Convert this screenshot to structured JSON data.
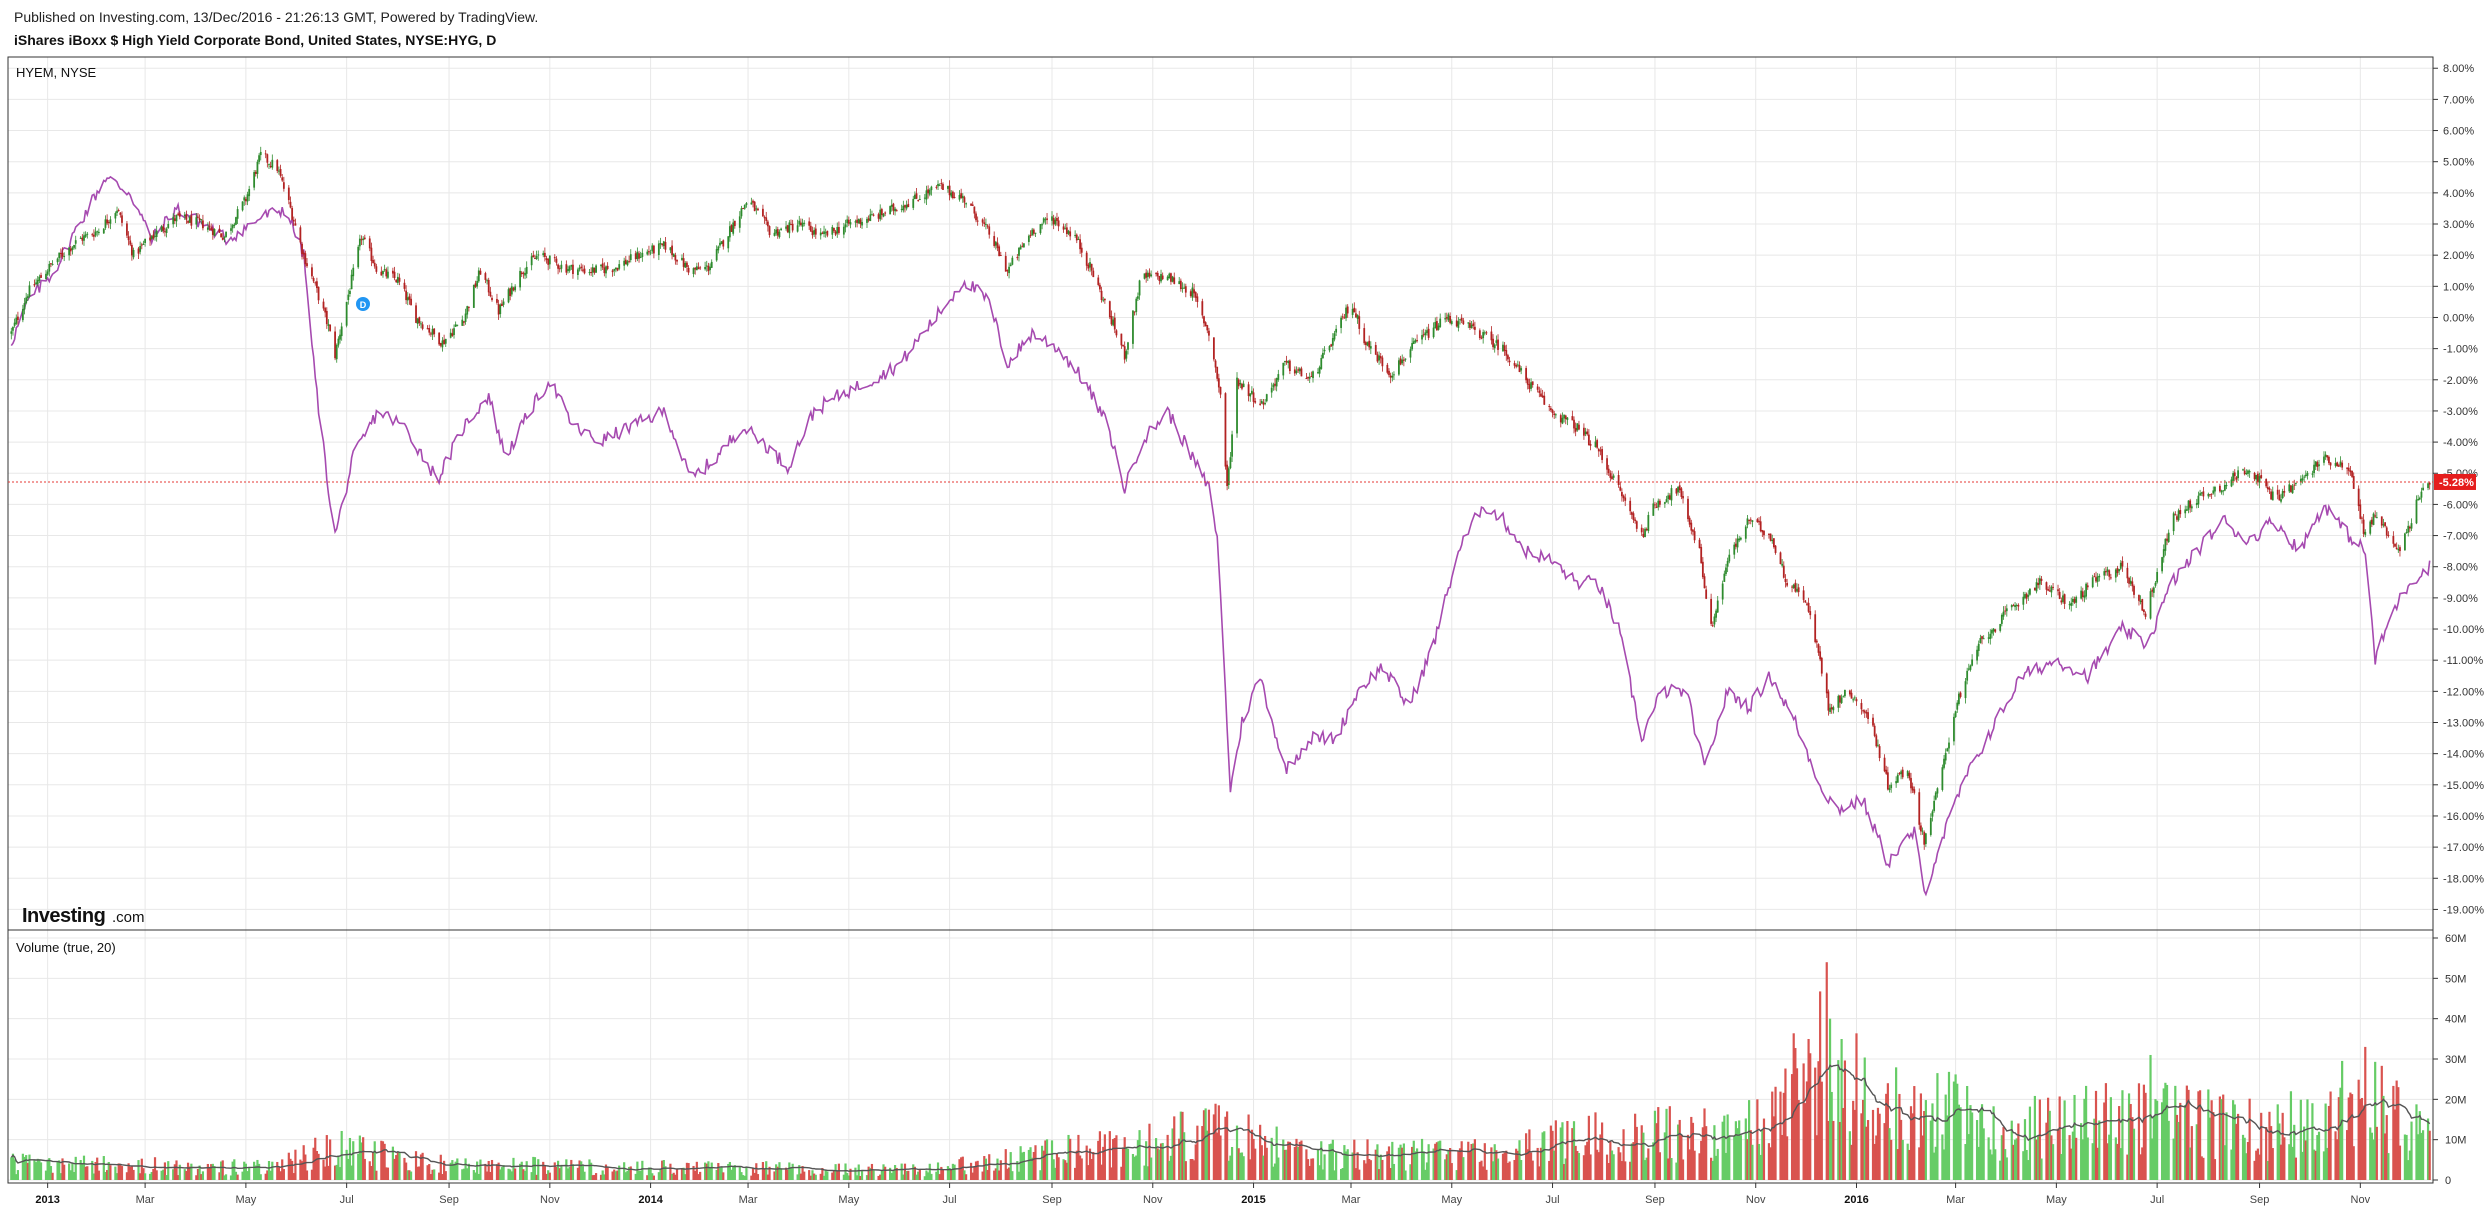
{
  "header": {
    "published": "Published on Investing.com, 13/Dec/2016 - 21:26:13 GMT, Powered by TradingView.",
    "title": "iShares iBoxx $ High Yield Corporate Bond, United States, NYSE:HYG, D"
  },
  "panes": {
    "price_label": "HYEM, NYSE",
    "volume_label": "Volume (true, 20)",
    "last_value_label": "-5.28%",
    "logo_main": "Investing",
    "logo_suffix": ".com",
    "marker_letter": "D"
  },
  "colors": {
    "up_candle": "#2e8b2e",
    "down_candle": "#b22222",
    "compare_line": "#a64ab0",
    "volume_up": "#66cc66",
    "volume_down": "#d9534f",
    "volume_ma": "#555555",
    "last_line": "#e53935",
    "grid": "#e8e8e8"
  },
  "chart_data": [
    {
      "type": "candlestick",
      "name": "HYG",
      "compare_series_name": "HYEM, NYSE",
      "y_unit": "%",
      "ylim": [
        -19.5,
        8.2
      ],
      "y_ticks": [
        "8.00%",
        "7.00%",
        "6.00%",
        "5.00%",
        "4.00%",
        "3.00%",
        "2.00%",
        "1.00%",
        "0.00%",
        "-1.00%",
        "-2.00%",
        "-3.00%",
        "-4.00%",
        "-5.00%",
        "-6.00%",
        "-7.00%",
        "-8.00%",
        "-9.00%",
        "-10.00%",
        "-11.00%",
        "-12.00%",
        "-13.00%",
        "-14.00%",
        "-15.00%",
        "-16.00%",
        "-17.00%",
        "-18.00%",
        "-19.00%"
      ],
      "x_ticks": [
        {
          "label": "2013",
          "date": "2013-01-01",
          "bold": true
        },
        {
          "label": "Mar",
          "date": "2013-03-01"
        },
        {
          "label": "May",
          "date": "2013-05-01"
        },
        {
          "label": "Jul",
          "date": "2013-07-01"
        },
        {
          "label": "Sep",
          "date": "2013-09-01"
        },
        {
          "label": "Nov",
          "date": "2013-11-01"
        },
        {
          "label": "2014",
          "date": "2014-01-01",
          "bold": true
        },
        {
          "label": "Mar",
          "date": "2014-03-01"
        },
        {
          "label": "May",
          "date": "2014-05-01"
        },
        {
          "label": "Jul",
          "date": "2014-07-01"
        },
        {
          "label": "Sep",
          "date": "2014-09-01"
        },
        {
          "label": "Nov",
          "date": "2014-11-01"
        },
        {
          "label": "2015",
          "date": "2015-01-01",
          "bold": true
        },
        {
          "label": "Mar",
          "date": "2015-03-01"
        },
        {
          "label": "May",
          "date": "2015-05-01"
        },
        {
          "label": "Jul",
          "date": "2015-07-01"
        },
        {
          "label": "Sep",
          "date": "2015-09-01"
        },
        {
          "label": "Nov",
          "date": "2015-11-01"
        },
        {
          "label": "2016",
          "date": "2016-01-01",
          "bold": true
        },
        {
          "label": "Mar",
          "date": "2016-03-01"
        },
        {
          "label": "May",
          "date": "2016-05-01"
        },
        {
          "label": "Jul",
          "date": "2016-07-01"
        },
        {
          "label": "Sep",
          "date": "2016-09-01"
        },
        {
          "label": "Nov",
          "date": "2016-11-01"
        }
      ],
      "x_range": [
        "2012-12-08",
        "2016-12-15"
      ],
      "last_value": -5.28,
      "hyg_path": [
        [
          "2012-12-10",
          -0.5
        ],
        [
          "2012-12-20",
          0.8
        ],
        [
          "2013-01-05",
          1.8
        ],
        [
          "2013-01-20",
          2.5
        ],
        [
          "2013-02-01",
          2.8
        ],
        [
          "2013-02-12",
          3.5
        ],
        [
          "2013-02-22",
          2.0
        ],
        [
          "2013-03-05",
          2.6
        ],
        [
          "2013-03-20",
          3.2
        ],
        [
          "2013-04-05",
          3.0
        ],
        [
          "2013-04-18",
          2.6
        ],
        [
          "2013-05-01",
          3.8
        ],
        [
          "2013-05-10",
          5.2
        ],
        [
          "2013-05-20",
          4.8
        ],
        [
          "2013-05-28",
          3.5
        ],
        [
          "2013-06-05",
          2.0
        ],
        [
          "2013-06-12",
          1.0
        ],
        [
          "2013-06-20",
          -0.3
        ],
        [
          "2013-06-24",
          -1.2
        ],
        [
          "2013-07-01",
          0.5
        ],
        [
          "2013-07-10",
          2.6
        ],
        [
          "2013-07-20",
          1.5
        ],
        [
          "2013-08-01",
          1.2
        ],
        [
          "2013-08-12",
          0.0
        ],
        [
          "2013-08-28",
          -0.8
        ],
        [
          "2013-09-10",
          0.0
        ],
        [
          "2013-09-20",
          1.5
        ],
        [
          "2013-10-01",
          0.2
        ],
        [
          "2013-10-15",
          1.5
        ],
        [
          "2013-10-25",
          2.0
        ],
        [
          "2013-11-10",
          1.6
        ],
        [
          "2013-11-25",
          1.5
        ],
        [
          "2013-12-10",
          1.6
        ],
        [
          "2013-12-25",
          2.0
        ],
        [
          "2014-01-10",
          2.3
        ],
        [
          "2014-01-25",
          1.5
        ],
        [
          "2014-02-05",
          1.6
        ],
        [
          "2014-02-20",
          3.0
        ],
        [
          "2014-03-01",
          3.8
        ],
        [
          "2014-03-15",
          2.7
        ],
        [
          "2014-04-01",
          3.0
        ],
        [
          "2014-04-15",
          2.6
        ],
        [
          "2014-05-01",
          3.0
        ],
        [
          "2014-05-20",
          3.3
        ],
        [
          "2014-06-10",
          3.8
        ],
        [
          "2014-06-25",
          4.2
        ],
        [
          "2014-07-10",
          3.8
        ],
        [
          "2014-07-25",
          2.7
        ],
        [
          "2014-08-05",
          1.5
        ],
        [
          "2014-08-20",
          2.8
        ],
        [
          "2014-09-01",
          3.2
        ],
        [
          "2014-09-15",
          2.6
        ],
        [
          "2014-09-25",
          1.5
        ],
        [
          "2014-10-10",
          -0.5
        ],
        [
          "2014-10-15",
          -1.2
        ],
        [
          "2014-10-25",
          1.3
        ],
        [
          "2014-11-10",
          1.3
        ],
        [
          "2014-11-25",
          0.8
        ],
        [
          "2014-12-05",
          -0.5
        ],
        [
          "2014-12-12",
          -2.5
        ],
        [
          "2014-12-16",
          -5.5
        ],
        [
          "2014-12-22",
          -2.0
        ],
        [
          "2015-01-06",
          -2.8
        ],
        [
          "2015-01-20",
          -1.5
        ],
        [
          "2015-02-05",
          -2.0
        ],
        [
          "2015-02-20",
          -0.5
        ],
        [
          "2015-03-01",
          0.5
        ],
        [
          "2015-03-10",
          -0.8
        ],
        [
          "2015-03-25",
          -1.8
        ],
        [
          "2015-04-10",
          -0.8
        ],
        [
          "2015-04-28",
          0.0
        ],
        [
          "2015-05-15",
          -0.4
        ],
        [
          "2015-06-01",
          -1.0
        ],
        [
          "2015-06-15",
          -2.0
        ],
        [
          "2015-06-30",
          -3.0
        ],
        [
          "2015-07-15",
          -3.5
        ],
        [
          "2015-07-28",
          -4.2
        ],
        [
          "2015-08-10",
          -5.5
        ],
        [
          "2015-08-24",
          -7.0
        ],
        [
          "2015-09-01",
          -6.0
        ],
        [
          "2015-09-15",
          -5.5
        ],
        [
          "2015-09-28",
          -7.5
        ],
        [
          "2015-10-05",
          -10.0
        ],
        [
          "2015-10-15",
          -7.8
        ],
        [
          "2015-10-28",
          -6.5
        ],
        [
          "2015-11-10",
          -7.0
        ],
        [
          "2015-11-20",
          -8.5
        ],
        [
          "2015-12-01",
          -9.0
        ],
        [
          "2015-12-10",
          -11.0
        ],
        [
          "2015-12-15",
          -12.5
        ],
        [
          "2015-12-28",
          -12.0
        ],
        [
          "2016-01-10",
          -13.0
        ],
        [
          "2016-01-20",
          -15.0
        ],
        [
          "2016-02-01",
          -14.5
        ],
        [
          "2016-02-11",
          -16.8
        ],
        [
          "2016-02-20",
          -15.0
        ],
        [
          "2016-03-01",
          -12.5
        ],
        [
          "2016-03-15",
          -10.5
        ],
        [
          "2016-04-01",
          -9.5
        ],
        [
          "2016-04-20",
          -8.5
        ],
        [
          "2016-05-10",
          -9.2
        ],
        [
          "2016-05-25",
          -8.4
        ],
        [
          "2016-06-10",
          -8.0
        ],
        [
          "2016-06-24",
          -9.5
        ],
        [
          "2016-07-10",
          -6.5
        ],
        [
          "2016-07-25",
          -5.8
        ],
        [
          "2016-08-10",
          -5.4
        ],
        [
          "2016-08-25",
          -4.8
        ],
        [
          "2016-09-10",
          -5.8
        ],
        [
          "2016-09-25",
          -5.3
        ],
        [
          "2016-10-10",
          -4.5
        ],
        [
          "2016-10-25",
          -4.8
        ],
        [
          "2016-11-04",
          -7.0
        ],
        [
          "2016-11-10",
          -6.3
        ],
        [
          "2016-11-25",
          -7.5
        ],
        [
          "2016-12-05",
          -6.0
        ],
        [
          "2016-12-13",
          -5.28
        ]
      ],
      "hyem_path": [
        [
          "2012-12-10",
          -0.8
        ],
        [
          "2012-12-20",
          0.5
        ],
        [
          "2013-01-05",
          1.5
        ],
        [
          "2013-01-20",
          3.0
        ],
        [
          "2013-02-05",
          4.5
        ],
        [
          "2013-02-20",
          4.0
        ],
        [
          "2013-03-05",
          2.5
        ],
        [
          "2013-03-20",
          3.5
        ],
        [
          "2013-04-05",
          3.0
        ],
        [
          "2013-04-20",
          2.5
        ],
        [
          "2013-05-10",
          3.2
        ],
        [
          "2013-05-25",
          3.5
        ],
        [
          "2013-06-05",
          2.0
        ],
        [
          "2013-06-12",
          -2.0
        ],
        [
          "2013-06-20",
          -5.5
        ],
        [
          "2013-06-24",
          -7.0
        ],
        [
          "2013-07-05",
          -4.5
        ],
        [
          "2013-07-20",
          -3.0
        ],
        [
          "2013-08-05",
          -3.5
        ],
        [
          "2013-08-25",
          -5.2
        ],
        [
          "2013-09-10",
          -3.5
        ],
        [
          "2013-09-25",
          -2.5
        ],
        [
          "2013-10-05",
          -4.5
        ],
        [
          "2013-10-20",
          -3.0
        ],
        [
          "2013-11-01",
          -2.0
        ],
        [
          "2013-11-15",
          -3.5
        ],
        [
          "2013-12-01",
          -4.0
        ],
        [
          "2013-12-20",
          -3.5
        ],
        [
          "2014-01-10",
          -3.0
        ],
        [
          "2014-01-25",
          -5.2
        ],
        [
          "2014-02-10",
          -4.5
        ],
        [
          "2014-02-25",
          -3.5
        ],
        [
          "2014-03-10",
          -4.0
        ],
        [
          "2014-03-25",
          -4.8
        ],
        [
          "2014-04-10",
          -3.0
        ],
        [
          "2014-04-25",
          -2.5
        ],
        [
          "2014-05-15",
          -2.0
        ],
        [
          "2014-06-01",
          -1.5
        ],
        [
          "2014-06-15",
          -0.5
        ],
        [
          "2014-06-30",
          0.5
        ],
        [
          "2014-07-10",
          1.2
        ],
        [
          "2014-07-25",
          0.5
        ],
        [
          "2014-08-05",
          -1.5
        ],
        [
          "2014-08-20",
          -0.5
        ],
        [
          "2014-09-05",
          -1.0
        ],
        [
          "2014-09-20",
          -2.0
        ],
        [
          "2014-10-05",
          -3.5
        ],
        [
          "2014-10-15",
          -5.5
        ],
        [
          "2014-10-25",
          -4.0
        ],
        [
          "2014-11-10",
          -3.0
        ],
        [
          "2014-11-25",
          -4.5
        ],
        [
          "2014-12-05",
          -5.5
        ],
        [
          "2014-12-10",
          -7.0
        ],
        [
          "2014-12-15",
          -12.0
        ],
        [
          "2014-12-18",
          -15.2
        ],
        [
          "2014-12-25",
          -13.0
        ],
        [
          "2015-01-05",
          -11.5
        ],
        [
          "2015-01-20",
          -14.5
        ],
        [
          "2015-02-05",
          -13.5
        ],
        [
          "2015-02-20",
          -13.5
        ],
        [
          "2015-03-05",
          -12.0
        ],
        [
          "2015-03-20",
          -11.2
        ],
        [
          "2015-04-05",
          -12.5
        ],
        [
          "2015-04-20",
          -10.5
        ],
        [
          "2015-05-05",
          -7.5
        ],
        [
          "2015-05-20",
          -6.0
        ],
        [
          "2015-06-01",
          -6.5
        ],
        [
          "2015-06-15",
          -7.5
        ],
        [
          "2015-06-30",
          -7.8
        ],
        [
          "2015-07-15",
          -8.5
        ],
        [
          "2015-07-28",
          -8.5
        ],
        [
          "2015-08-10",
          -10.0
        ],
        [
          "2015-08-24",
          -13.5
        ],
        [
          "2015-09-05",
          -12.0
        ],
        [
          "2015-09-20",
          -12.0
        ],
        [
          "2015-10-01",
          -14.5
        ],
        [
          "2015-10-15",
          -12.0
        ],
        [
          "2015-10-28",
          -12.5
        ],
        [
          "2015-11-10",
          -11.5
        ],
        [
          "2015-11-25",
          -13.0
        ],
        [
          "2015-12-10",
          -15.0
        ],
        [
          "2015-12-20",
          -15.8
        ],
        [
          "2016-01-05",
          -15.5
        ],
        [
          "2016-01-20",
          -17.5
        ],
        [
          "2016-02-05",
          -16.5
        ],
        [
          "2016-02-11",
          -18.5
        ],
        [
          "2016-02-20",
          -17.0
        ],
        [
          "2016-03-05",
          -15.0
        ],
        [
          "2016-03-20",
          -13.5
        ],
        [
          "2016-04-10",
          -11.5
        ],
        [
          "2016-05-01",
          -11.0
        ],
        [
          "2016-05-20",
          -11.5
        ],
        [
          "2016-06-10",
          -10.0
        ],
        [
          "2016-06-25",
          -10.5
        ],
        [
          "2016-07-10",
          -8.5
        ],
        [
          "2016-07-25",
          -7.5
        ],
        [
          "2016-08-10",
          -6.5
        ],
        [
          "2016-08-25",
          -7.2
        ],
        [
          "2016-09-10",
          -6.5
        ],
        [
          "2016-09-25",
          -7.5
        ],
        [
          "2016-10-10",
          -6.0
        ],
        [
          "2016-10-25",
          -7.0
        ],
        [
          "2016-11-04",
          -7.5
        ],
        [
          "2016-11-10",
          -11.0
        ],
        [
          "2016-11-20",
          -9.5
        ],
        [
          "2016-12-01",
          -8.5
        ],
        [
          "2016-12-13",
          -8.0
        ]
      ]
    },
    {
      "type": "bar",
      "name": "Volume (true, 20)",
      "ylim": [
        0,
        60000000
      ],
      "y_ticks": [
        "0",
        "10M",
        "20M",
        "30M",
        "40M",
        "50M",
        "60M"
      ],
      "typical_volume_path": [
        [
          "2012-12-10",
          4000000
        ],
        [
          "2013-05-20",
          3000000
        ],
        [
          "2013-06-20",
          8000000
        ],
        [
          "2013-08-20",
          4000000
        ],
        [
          "2014-01-20",
          3000000
        ],
        [
          "2014-06-20",
          2500000
        ],
        [
          "2014-10-20",
          9000000
        ],
        [
          "2014-12-15",
          12000000
        ],
        [
          "2015-02-01",
          6000000
        ],
        [
          "2015-06-01",
          7000000
        ],
        [
          "2015-08-25",
          13000000
        ],
        [
          "2015-10-15",
          10000000
        ],
        [
          "2015-12-14",
          30000000
        ],
        [
          "2016-01-15",
          17000000
        ],
        [
          "2016-02-15",
          18000000
        ],
        [
          "2016-04-01",
          12000000
        ],
        [
          "2016-06-25",
          16000000
        ],
        [
          "2016-09-01",
          12000000
        ],
        [
          "2016-11-07",
          20000000
        ],
        [
          "2016-12-13",
          9000000
        ]
      ],
      "spikes": [
        [
          "2015-12-14",
          54000000
        ],
        [
          "2015-12-16",
          40000000
        ],
        [
          "2016-11-04",
          33000000
        ],
        [
          "2016-06-27",
          31000000
        ],
        [
          "2014-12-16",
          17000000
        ],
        [
          "2016-01-20",
          24000000
        ]
      ]
    }
  ]
}
